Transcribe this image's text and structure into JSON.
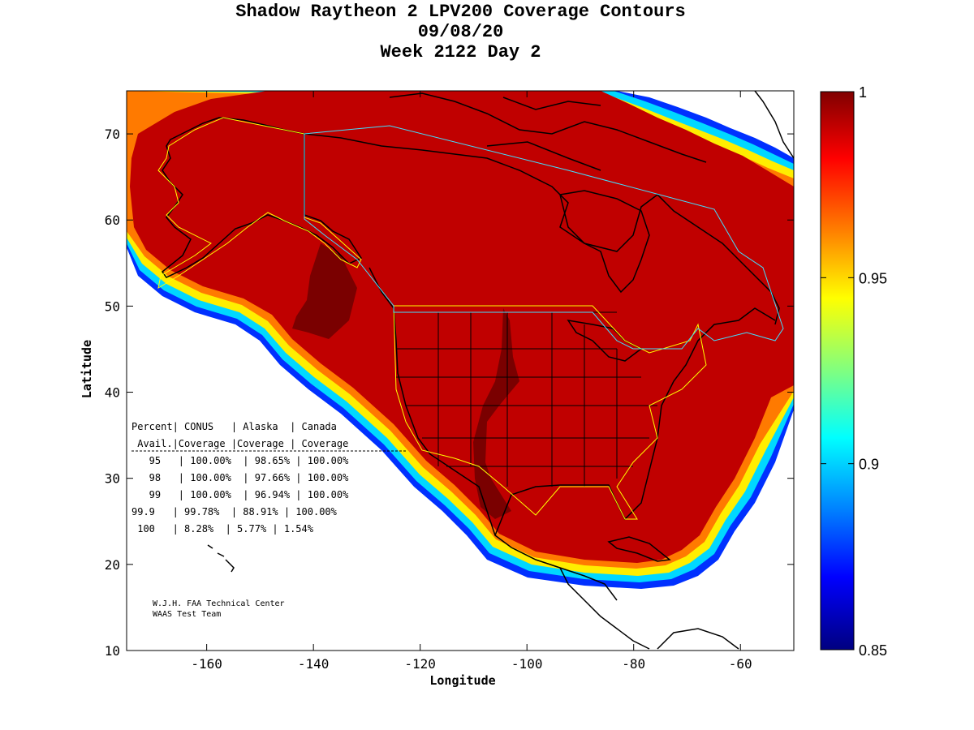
{
  "title": {
    "line1": "Shadow Raytheon 2 LPV200 Coverage Contours",
    "line2": "09/08/20",
    "line3": "Week 2122 Day 2"
  },
  "axes": {
    "xlabel": "Longitude",
    "ylabel": "Latitude",
    "xlim": [
      -175,
      -50
    ],
    "ylim": [
      10,
      75
    ],
    "xticks": [
      -160,
      -140,
      -120,
      -100,
      -80,
      -60
    ],
    "yticks": [
      10,
      20,
      30,
      40,
      50,
      60,
      70
    ]
  },
  "colorbar": {
    "min": 0.85,
    "max": 1,
    "tick_labels": [
      "1",
      "0.95",
      "0.9",
      "0.85"
    ],
    "tick_values": [
      1,
      0.95,
      0.9,
      0.85
    ],
    "colormap": "jet"
  },
  "stats_table": {
    "rows": [
      "Percent| CONUS   | Alaska  | Canada",
      " Avail.|Coverage |Coverage | Coverage",
      "   95   | 100.00%  | 98.65% | 100.00%",
      "   98   | 100.00%  | 97.66% | 100.00%",
      "   99   | 100.00%  | 96.94% | 100.00%",
      "99.9   | 99.78%  | 88.91% | 100.00%",
      " 100   | 8.28%  | 5.77% | 1.54%"
    ]
  },
  "credit": {
    "line1": "W.J.H. FAA Technical Center",
    "line2": "WAAS Test Team"
  },
  "colors": {
    "coverage_full": "#c00000",
    "coverage_dark": "#8b0000",
    "service_boundary_yellow": "#ffff00",
    "service_boundary_cyan": "#40e0ff",
    "coastline": "#000000"
  }
}
